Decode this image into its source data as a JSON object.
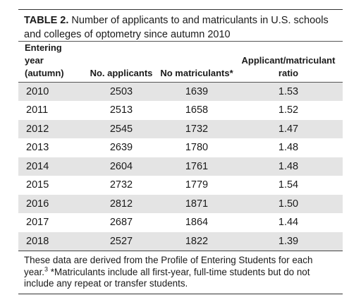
{
  "table": {
    "label": "TABLE 2.",
    "caption": "Number of applicants to and matriculants in U.S. schools and colleges of optometry since autumn 2010",
    "headers": [
      {
        "line1": "Entering year",
        "line2": "(autumn)"
      },
      {
        "line1": "",
        "line2": "No. applicants"
      },
      {
        "line1": "",
        "line2": "No matriculants*"
      },
      {
        "line1": "Applicant/matriculant",
        "line2": "ratio"
      }
    ],
    "rows": [
      [
        "2010",
        "2503",
        "1639",
        "1.53"
      ],
      [
        "2011",
        "2513",
        "1658",
        "1.52"
      ],
      [
        "2012",
        "2545",
        "1732",
        "1.47"
      ],
      [
        "2013",
        "2639",
        "1780",
        "1.48"
      ],
      [
        "2014",
        "2604",
        "1761",
        "1.48"
      ],
      [
        "2015",
        "2732",
        "1779",
        "1.54"
      ],
      [
        "2016",
        "2812",
        "1871",
        "1.50"
      ],
      [
        "2017",
        "2687",
        "1864",
        "1.44"
      ],
      [
        "2018",
        "2527",
        "1822",
        "1.39"
      ]
    ],
    "footnote_pre": "These data are derived from the Profile of Entering Students for each year.",
    "footnote_ref": "3",
    "footnote_post": " *Matriculants include all first-year, full-time students but do not include any repeat or transfer students."
  },
  "colors": {
    "shade": "#e4e4e4",
    "text": "#1a1a1a"
  }
}
